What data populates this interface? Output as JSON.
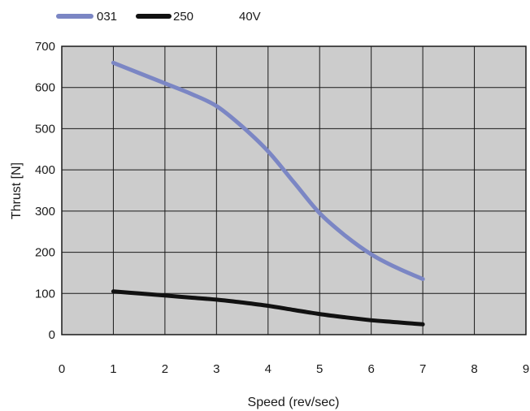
{
  "chart_data": {
    "type": "line",
    "title": "",
    "xlabel": "Speed (rev/sec)",
    "ylabel": "Thrust [N]",
    "xlim": [
      0,
      9
    ],
    "ylim": [
      0,
      700
    ],
    "xticks": [
      0,
      1,
      2,
      3,
      4,
      5,
      6,
      7,
      8,
      9
    ],
    "yticks": [
      0,
      100,
      200,
      300,
      400,
      500,
      600,
      700
    ],
    "grid": true,
    "background": "#cccccc",
    "legend_note": "40V",
    "series": [
      {
        "name": "031",
        "color": "#7b86c4",
        "x": [
          1,
          1.5,
          2,
          2.5,
          3,
          3.5,
          4,
          4.5,
          5,
          5.5,
          6,
          6.5,
          7
        ],
        "y": [
          660,
          635,
          610,
          585,
          555,
          505,
          445,
          370,
          295,
          240,
          195,
          162,
          135
        ]
      },
      {
        "name": "250",
        "color": "#111111",
        "x": [
          1,
          1.5,
          2,
          2.5,
          3,
          3.5,
          4,
          4.5,
          5,
          5.5,
          6,
          6.5,
          7
        ],
        "y": [
          105,
          100,
          95,
          90,
          85,
          78,
          70,
          60,
          50,
          42,
          35,
          30,
          25
        ]
      }
    ]
  }
}
